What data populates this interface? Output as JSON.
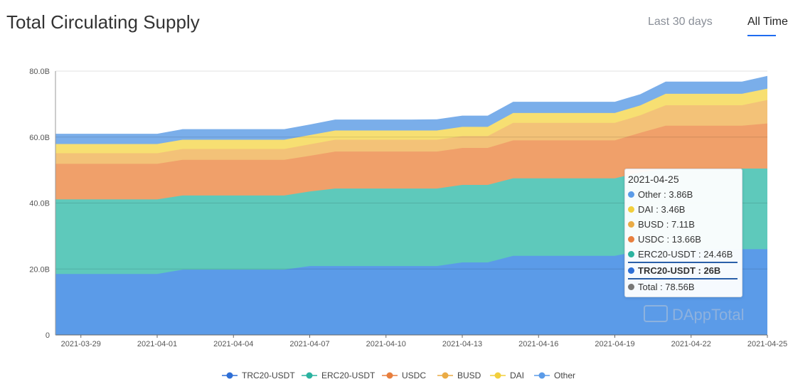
{
  "header": {
    "title": "Total Circulating Supply",
    "tab_last30": "Last 30 days",
    "tab_all": "All Time"
  },
  "watermark": "DAppTotal",
  "chart_data": {
    "type": "area",
    "stacked": true,
    "title": "Total Circulating Supply",
    "y_ticks": [
      "0",
      "20.0B",
      "40.0B",
      "60.0B",
      "80.0B"
    ],
    "ylim": [
      0,
      80
    ],
    "grid": true,
    "legend_position": "bottom",
    "x": [
      "2021-03-28",
      "2021-03-29",
      "2021-03-30",
      "2021-03-31",
      "2021-04-01",
      "2021-04-02",
      "2021-04-03",
      "2021-04-04",
      "2021-04-05",
      "2021-04-06",
      "2021-04-07",
      "2021-04-08",
      "2021-04-09",
      "2021-04-10",
      "2021-04-11",
      "2021-04-12",
      "2021-04-13",
      "2021-04-14",
      "2021-04-15",
      "2021-04-16",
      "2021-04-17",
      "2021-04-18",
      "2021-04-19",
      "2021-04-20",
      "2021-04-21",
      "2021-04-22",
      "2021-04-23",
      "2021-04-24",
      "2021-04-25"
    ],
    "x_tick_labels": [
      "2021-03-29",
      "2021-04-01",
      "2021-04-04",
      "2021-04-07",
      "2021-04-10",
      "2021-04-13",
      "2021-04-16",
      "2021-04-19",
      "2021-04-22",
      "2021-04-25"
    ],
    "series": [
      {
        "name": "TRC20-USDT",
        "color": "#5b9be8",
        "values": [
          18.5,
          18.5,
          18.5,
          18.5,
          18.5,
          19.8,
          19.8,
          19.8,
          19.8,
          19.8,
          20.9,
          20.9,
          20.9,
          20.9,
          20.9,
          20.9,
          22.0,
          22.0,
          24.0,
          24.0,
          24.0,
          24.0,
          24.0,
          25.5,
          26.0,
          26.0,
          26.0,
          26.0,
          26.0
        ]
      },
      {
        "name": "ERC20-USDT",
        "color": "#5ec9bb",
        "values": [
          22.6,
          22.6,
          22.6,
          22.6,
          22.6,
          22.5,
          22.5,
          22.5,
          22.5,
          22.5,
          22.6,
          23.5,
          23.5,
          23.5,
          23.5,
          23.5,
          23.5,
          23.5,
          23.5,
          23.5,
          23.5,
          23.5,
          23.5,
          23.8,
          24.46,
          24.46,
          24.46,
          24.46,
          24.46
        ]
      },
      {
        "name": "USDC",
        "color": "#f0a06a",
        "values": [
          10.8,
          10.8,
          10.8,
          10.8,
          10.8,
          10.8,
          10.8,
          10.8,
          10.8,
          10.8,
          10.8,
          11.2,
          11.2,
          11.2,
          11.2,
          11.2,
          11.2,
          11.2,
          11.5,
          11.5,
          11.5,
          11.5,
          11.5,
          12.0,
          13.0,
          13.0,
          13.0,
          13.0,
          13.66
        ]
      },
      {
        "name": "BUSD",
        "color": "#f3c278",
        "values": [
          3.2,
          3.2,
          3.2,
          3.2,
          3.2,
          3.3,
          3.3,
          3.3,
          3.3,
          3.3,
          3.5,
          3.6,
          3.6,
          3.6,
          3.6,
          3.6,
          3.6,
          3.6,
          5.3,
          5.3,
          5.3,
          5.3,
          5.3,
          5.3,
          6.2,
          6.2,
          6.2,
          6.2,
          7.11
        ]
      },
      {
        "name": "DAI",
        "color": "#f7df72",
        "values": [
          2.8,
          2.8,
          2.8,
          2.8,
          2.8,
          2.8,
          2.8,
          2.8,
          2.8,
          2.8,
          2.8,
          2.8,
          2.8,
          2.8,
          2.8,
          2.8,
          2.8,
          2.8,
          3.0,
          3.0,
          3.0,
          3.0,
          3.0,
          3.0,
          3.46,
          3.46,
          3.46,
          3.46,
          3.46
        ]
      },
      {
        "name": "Other",
        "color": "#7aaeea",
        "values": [
          3.1,
          3.1,
          3.1,
          3.1,
          3.1,
          3.2,
          3.2,
          3.2,
          3.2,
          3.2,
          3.2,
          3.3,
          3.3,
          3.3,
          3.3,
          3.4,
          3.4,
          3.4,
          3.4,
          3.4,
          3.4,
          3.4,
          3.4,
          3.4,
          3.7,
          3.7,
          3.7,
          3.7,
          3.86
        ]
      }
    ],
    "legend_entries": [
      "TRC20-USDT",
      "ERC20-USDT",
      "USDC",
      "BUSD",
      "DAI",
      "Other"
    ],
    "legend_colors": [
      "#2e6fd6",
      "#2bb3a0",
      "#e87f3e",
      "#eaab45",
      "#f2cf3c",
      "#5b9be8"
    ]
  },
  "tooltip": {
    "date": "2021-04-25",
    "rows": [
      {
        "label": "Other : 3.86B",
        "color": "#5b9be8",
        "highlight": false
      },
      {
        "label": "DAI : 3.46B",
        "color": "#f2cf3c",
        "highlight": false
      },
      {
        "label": "BUSD : 7.11B",
        "color": "#eaab45",
        "highlight": false
      },
      {
        "label": "USDC : 13.66B",
        "color": "#e87f3e",
        "highlight": false
      },
      {
        "label": "ERC20-USDT : 24.46B",
        "color": "#2bb3a0",
        "highlight": false
      },
      {
        "label": "TRC20-USDT : 26B",
        "color": "#2e6fd6",
        "highlight": true
      },
      {
        "label": "Total : 78.56B",
        "color": "#777777",
        "highlight": false
      }
    ]
  }
}
